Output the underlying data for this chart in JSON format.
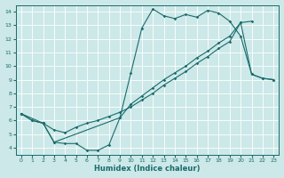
{
  "xlabel": "Humidex (Indice chaleur)",
  "xlim": [
    -0.5,
    23.5
  ],
  "ylim": [
    3.5,
    14.5
  ],
  "yticks": [
    4,
    5,
    6,
    7,
    8,
    9,
    10,
    11,
    12,
    13,
    14
  ],
  "xticks": [
    0,
    1,
    2,
    3,
    4,
    5,
    6,
    7,
    8,
    9,
    10,
    11,
    12,
    13,
    14,
    15,
    16,
    17,
    18,
    19,
    20,
    21,
    22,
    23
  ],
  "bg_color": "#cce8e8",
  "line_color": "#1a6b6b",
  "grid_color": "#ffffff",
  "curve1_x": [
    0,
    1,
    2,
    3,
    4,
    5,
    6,
    7,
    8,
    9,
    10,
    11,
    12,
    13,
    14,
    15,
    16,
    17,
    18,
    19,
    20,
    21,
    22,
    23
  ],
  "curve1_y": [
    6.5,
    6.0,
    5.8,
    4.4,
    4.3,
    4.3,
    3.8,
    3.8,
    4.2,
    6.2,
    9.5,
    12.8,
    14.2,
    13.7,
    13.5,
    13.8,
    13.6,
    14.1,
    13.9,
    13.3,
    12.2,
    9.4,
    9.1,
    9.0
  ],
  "curve2_x": [
    0,
    1,
    2,
    3,
    9,
    10,
    11,
    12,
    13,
    14,
    15,
    16,
    17,
    18,
    19,
    20,
    21,
    22,
    23
  ],
  "curve2_y": [
    6.5,
    6.0,
    5.8,
    4.4,
    6.2,
    7.2,
    7.8,
    8.4,
    9.0,
    9.5,
    10.0,
    10.6,
    11.1,
    11.7,
    12.2,
    13.2,
    9.4,
    9.1,
    9.0
  ],
  "curve3_x": [
    0,
    2,
    3,
    4,
    5,
    6,
    7,
    8,
    9,
    10,
    11,
    12,
    13,
    14,
    15,
    16,
    17,
    18,
    19,
    20,
    21
  ],
  "curve3_y": [
    6.5,
    5.8,
    5.3,
    5.1,
    5.5,
    5.8,
    6.0,
    6.3,
    6.6,
    7.0,
    7.5,
    8.0,
    8.6,
    9.1,
    9.6,
    10.2,
    10.7,
    11.3,
    11.8,
    13.2,
    13.3
  ]
}
